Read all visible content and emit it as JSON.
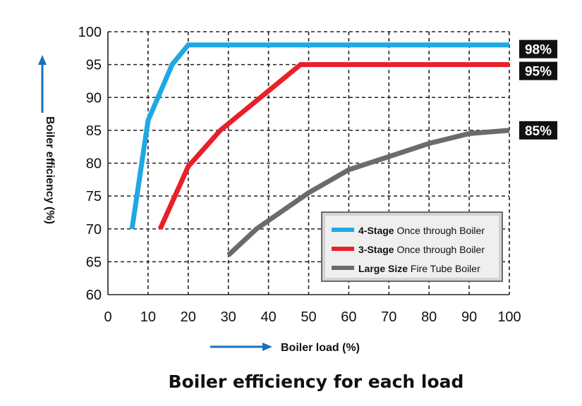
{
  "chart_data": {
    "type": "line",
    "title": "Boiler efficiency for each load",
    "xlabel": "Boiler load (%)",
    "ylabel": "Boiler efficiency (%)",
    "xlim": [
      0,
      100
    ],
    "ylim": [
      60,
      100
    ],
    "x_ticks": [
      "0",
      "10",
      "20",
      "30",
      "40",
      "50",
      "60",
      "70",
      "80",
      "90",
      "100"
    ],
    "y_ticks": [
      "60",
      "65",
      "70",
      "75",
      "80",
      "85",
      "90",
      "95",
      "100"
    ],
    "grid": true,
    "legend_position": "bottom-right",
    "series": [
      {
        "name_bold": "4-Stage",
        "name_rest": " Once through Boiler",
        "color": "#1fa8e6",
        "end_label": "98%",
        "x": [
          6,
          10,
          16,
          20,
          100
        ],
        "y": [
          70,
          86.5,
          95,
          98,
          98
        ]
      },
      {
        "name_bold": "3-Stage",
        "name_rest": " Once through Boiler",
        "color": "#e8202a",
        "end_label": "95%",
        "x": [
          13,
          20,
          28,
          38,
          48,
          100
        ],
        "y": [
          70,
          79.5,
          85,
          90,
          95,
          95
        ]
      },
      {
        "name_bold": "Large Size",
        "name_rest": " Fire Tube Boiler",
        "color": "#6b6b6e",
        "end_label": "85%",
        "x": [
          30,
          37,
          50,
          60,
          70,
          80,
          90,
          100
        ],
        "y": [
          66,
          70,
          75.5,
          79,
          81,
          83,
          84.5,
          85
        ]
      }
    ]
  }
}
